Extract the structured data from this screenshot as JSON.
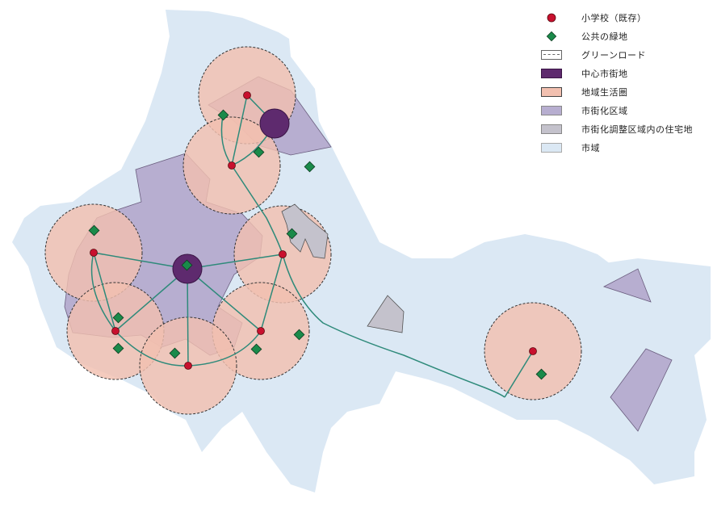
{
  "legend": {
    "items": [
      {
        "label": "小学校（既存）",
        "symbol": "school-dot",
        "color": "#c8102e"
      },
      {
        "label": "公共の緑地",
        "symbol": "green-diamond",
        "color": "#1a8a4a"
      },
      {
        "label": "グリーンロード",
        "symbol": "dashed-box",
        "color": "#666666"
      },
      {
        "label": "中心市街地",
        "symbol": "filled-box",
        "color": "#5e2a6e"
      },
      {
        "label": "地域生活圏",
        "symbol": "filled-box",
        "color": "#f2c0b0"
      },
      {
        "label": "市街化区域",
        "symbol": "filled-box",
        "color": "#b7aed0"
      },
      {
        "label": "市街化調整区域内の住宅地",
        "symbol": "filled-box",
        "color": "#c4c2cc"
      },
      {
        "label": "市域",
        "symbol": "filled-box",
        "color": "#dbe8f4"
      }
    ]
  },
  "colors": {
    "city_area": "#dbe8f4",
    "urbanization_area": "#b7aed0",
    "living_sphere": "#f2c0b0",
    "central_district": "#5e2a6e",
    "green_road": "#2e8a7a",
    "school": "#c8102e",
    "green_space": "#1a8a4a",
    "residential": "#c4c2cc"
  }
}
